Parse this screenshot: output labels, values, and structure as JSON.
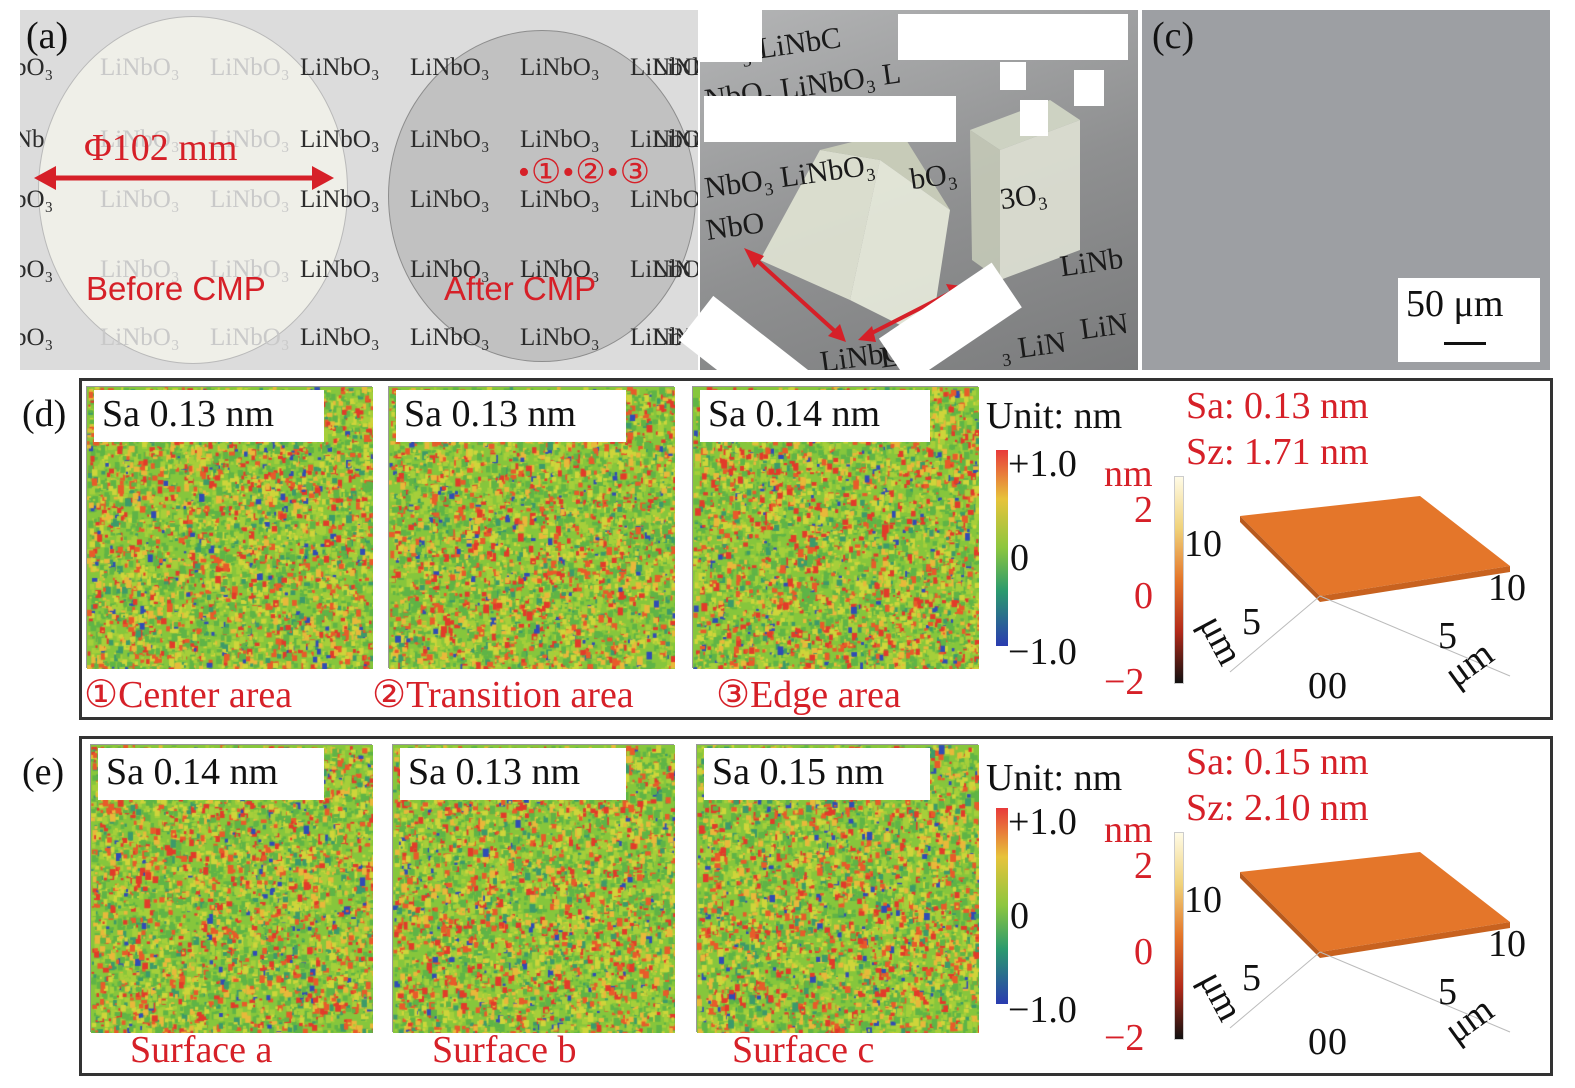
{
  "panel_a": {
    "label": "(a)",
    "watermark": "LiNbO₃",
    "watermark_partials": [
      "bO₃",
      "Nb",
      "LiNl",
      "LiNi",
      "LiN"
    ],
    "diameter": "Φ102 mm",
    "markers": "•①•②•③",
    "before": "Before CMP",
    "after": "After CMP"
  },
  "panel_b": {
    "watermark_fragments": [
      "₃ LiNbC",
      "NbO₃ LiNbO₃ L",
      "NbO₃ LiNbO₃",
      "bO₃",
      "NbO",
      "LiNb",
      "LiN",
      "₃ LiN",
      "3O₃",
      "LiNbO",
      "Li",
      "₃"
    ],
    "colors": {
      "photo_bg": "#8f9091",
      "prism": "#d8dccb",
      "arrow": "#d62028"
    }
  },
  "panel_c": {
    "label": "(c)",
    "scale": "50 μm"
  },
  "panel_d": {
    "label": "(d)",
    "sa_values": [
      "Sa 0.13 nm",
      "Sa 0.13 nm",
      "Sa 0.14 nm"
    ],
    "captions": [
      "①Center area",
      "②Transition area",
      "③Edge area"
    ],
    "unit": "Unit: nm",
    "cbar_max": "+1.0",
    "cbar_mid": "0",
    "cbar_min": "−1.0",
    "sa3d": "Sa: 0.13 nm",
    "sz3d": "Sz: 1.71 nm"
  },
  "panel_e": {
    "label": "(e)",
    "sa_values": [
      "Sa 0.14 nm",
      "Sa 0.13 nm",
      "Sa 0.15 nm"
    ],
    "captions": [
      "Surface a",
      "Surface b",
      "Surface c"
    ],
    "unit": "Unit: nm",
    "cbar_max": "+1.0",
    "cbar_mid": "0",
    "cbar_min": "−1.0",
    "sa3d": "Sa: 0.15 nm",
    "sz3d": "Sz: 2.10 nm"
  },
  "plot3d": {
    "nm": "nm",
    "z_ticks": [
      "2",
      "0",
      "−2"
    ],
    "y_ticks": [
      "10",
      "5",
      "0"
    ],
    "x_ticks": [
      "0",
      "5",
      "10"
    ],
    "um": "μm"
  },
  "colors": {
    "red": "#d62028",
    "surface_orange": "#e4762a",
    "map_green": "#7ec13a"
  }
}
